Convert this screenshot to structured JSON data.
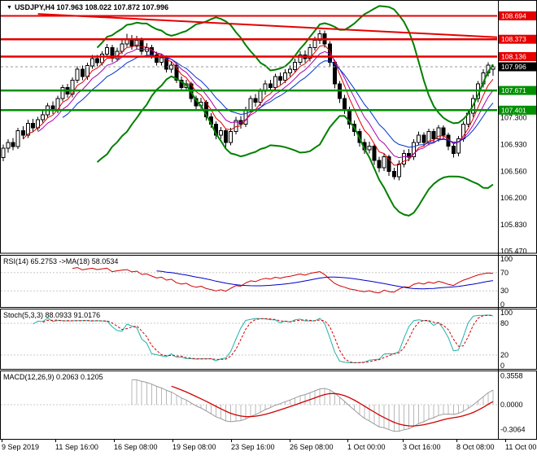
{
  "chart_header": {
    "collapse_icon": "▼",
    "text": "USDJPY,H4 107.963 108.022 107.872 107.996"
  },
  "chart_data": {
    "type": "candlestick",
    "symbol": "USDJPY",
    "timeframe": "H4",
    "last_quote": {
      "open": 107.963,
      "high": 108.022,
      "low": 107.872,
      "close": 107.996
    },
    "x_labels": [
      "9 Sep 2019",
      "11 Sep 16:00",
      "16 Sep 08:00",
      "19 Sep 08:00",
      "23 Sep 16:00",
      "26 Sep 08:00",
      "1 Oct 00:00",
      "3 Oct 16:00",
      "8 Oct 08:00",
      "11 Oct 00:00"
    ],
    "main_panel": {
      "ylim": [
        105.44,
        108.9
      ],
      "y_ticks": [
        {
          "value": 107.3,
          "label": "107.300"
        },
        {
          "value": 106.93,
          "label": "106.930"
        },
        {
          "value": 106.56,
          "label": "106.560"
        },
        {
          "value": 106.2,
          "label": "106.200"
        },
        {
          "value": 105.83,
          "label": "105.830"
        },
        {
          "value": 105.47,
          "label": "105.470"
        }
      ],
      "hlines": [
        {
          "price": 108.694,
          "label": "108.694",
          "color": "#e60000",
          "width": 2
        },
        {
          "price": 108.373,
          "label": "108.373",
          "color": "#e60000",
          "width": 2.5
        },
        {
          "price": 108.136,
          "label": "108.136",
          "color": "#e60000",
          "width": 2.5
        },
        {
          "price": 107.671,
          "label": "107.671",
          "color": "#009000",
          "width": 2.5
        },
        {
          "price": 107.401,
          "label": "107.401",
          "color": "#009000",
          "width": 2.5
        }
      ],
      "trendline": {
        "from_bar": 7,
        "from_price": 108.72,
        "to_bar": 100,
        "to_price": 108.4,
        "color": "#e60000",
        "width": 2
      },
      "current_price": {
        "value": 107.996,
        "label": "107.996",
        "badge_color": "#000000"
      },
      "overlays": {
        "bollinger": {
          "period": 20,
          "deviation": 2,
          "color": "#008000",
          "width": 2
        },
        "ma_fast": {
          "period": 5,
          "color": "#e00000"
        },
        "ma_mid": {
          "period": 8,
          "color": "#aa00aa"
        },
        "ma_slow": {
          "period": 13,
          "color": "#0033cc"
        }
      },
      "candles": [
        [
          106.75,
          106.93,
          106.7,
          106.88
        ],
        [
          106.88,
          107.0,
          106.82,
          106.96
        ],
        [
          106.96,
          107.02,
          106.85,
          106.9
        ],
        [
          106.9,
          107.16,
          106.87,
          107.12
        ],
        [
          107.12,
          107.18,
          107.0,
          107.06
        ],
        [
          107.06,
          107.27,
          107.02,
          107.22
        ],
        [
          107.22,
          107.28,
          107.1,
          107.16
        ],
        [
          107.16,
          107.31,
          107.12,
          107.27
        ],
        [
          107.27,
          107.39,
          107.23,
          107.34
        ],
        [
          107.34,
          107.5,
          107.3,
          107.46
        ],
        [
          107.46,
          107.52,
          107.35,
          107.4
        ],
        [
          107.4,
          107.6,
          107.36,
          107.56
        ],
        [
          107.56,
          107.75,
          107.52,
          107.71
        ],
        [
          107.71,
          107.76,
          107.57,
          107.62
        ],
        [
          107.62,
          107.85,
          107.58,
          107.81
        ],
        [
          107.81,
          108.0,
          107.77,
          107.96
        ],
        [
          107.96,
          108.01,
          107.81,
          107.86
        ],
        [
          107.86,
          108.05,
          107.82,
          108.01
        ],
        [
          108.01,
          108.16,
          107.97,
          108.11
        ],
        [
          108.11,
          108.16,
          108.0,
          108.05
        ],
        [
          108.05,
          108.21,
          108.01,
          108.17
        ],
        [
          108.17,
          108.31,
          108.13,
          108.26
        ],
        [
          108.26,
          108.3,
          108.06,
          108.11
        ],
        [
          108.11,
          108.26,
          108.07,
          108.21
        ],
        [
          108.21,
          108.36,
          108.17,
          108.31
        ],
        [
          108.31,
          108.45,
          108.27,
          108.38
        ],
        [
          108.38,
          108.43,
          108.23,
          108.28
        ],
        [
          108.28,
          108.42,
          108.24,
          108.36
        ],
        [
          108.36,
          108.4,
          108.16,
          108.21
        ],
        [
          108.21,
          108.32,
          108.16,
          108.26
        ],
        [
          108.26,
          108.3,
          108.11,
          108.16
        ],
        [
          108.16,
          108.2,
          108.01,
          108.06
        ],
        [
          108.06,
          108.17,
          108.01,
          108.12
        ],
        [
          108.12,
          108.15,
          107.92,
          107.96
        ],
        [
          107.96,
          108.07,
          107.91,
          108.02
        ],
        [
          108.02,
          108.05,
          107.77,
          107.81
        ],
        [
          107.81,
          107.86,
          107.66,
          107.71
        ],
        [
          107.71,
          107.82,
          107.67,
          107.76
        ],
        [
          107.76,
          107.79,
          107.51,
          107.56
        ],
        [
          107.56,
          107.6,
          107.41,
          107.46
        ],
        [
          107.46,
          107.57,
          107.42,
          107.51
        ],
        [
          107.51,
          107.54,
          107.26,
          107.31
        ],
        [
          107.31,
          107.36,
          107.16,
          107.21
        ],
        [
          107.21,
          107.25,
          107.0,
          107.06
        ],
        [
          107.06,
          107.17,
          107.01,
          107.12
        ],
        [
          107.12,
          107.15,
          106.88,
          106.96
        ],
        [
          106.96,
          107.16,
          106.92,
          107.11
        ],
        [
          107.11,
          107.31,
          107.07,
          107.26
        ],
        [
          107.26,
          107.32,
          107.15,
          107.21
        ],
        [
          107.21,
          107.45,
          107.17,
          107.41
        ],
        [
          107.41,
          107.6,
          107.37,
          107.56
        ],
        [
          107.56,
          107.62,
          107.45,
          107.51
        ],
        [
          107.51,
          107.7,
          107.46,
          107.66
        ],
        [
          107.66,
          107.81,
          107.61,
          107.76
        ],
        [
          107.76,
          107.82,
          107.66,
          107.71
        ],
        [
          107.71,
          107.9,
          107.67,
          107.86
        ],
        [
          107.86,
          107.92,
          107.75,
          107.81
        ],
        [
          107.81,
          107.96,
          107.77,
          107.91
        ],
        [
          107.91,
          108.01,
          107.86,
          107.96
        ],
        [
          107.96,
          108.11,
          107.92,
          108.06
        ],
        [
          108.06,
          108.21,
          108.02,
          108.16
        ],
        [
          108.16,
          108.22,
          108.05,
          108.11
        ],
        [
          108.11,
          108.31,
          108.07,
          108.26
        ],
        [
          108.26,
          108.41,
          108.22,
          108.36
        ],
        [
          108.36,
          108.5,
          108.31,
          108.45
        ],
        [
          108.45,
          108.49,
          108.26,
          108.31
        ],
        [
          108.31,
          108.35,
          108.0,
          108.06
        ],
        [
          108.06,
          108.09,
          107.7,
          107.76
        ],
        [
          107.76,
          107.8,
          107.5,
          107.56
        ],
        [
          107.56,
          107.61,
          107.35,
          107.41
        ],
        [
          107.41,
          107.45,
          107.15,
          107.21
        ],
        [
          107.21,
          107.26,
          107.05,
          107.11
        ],
        [
          107.11,
          107.15,
          106.9,
          106.96
        ],
        [
          106.96,
          107.01,
          106.8,
          106.86
        ],
        [
          106.86,
          106.97,
          106.81,
          106.91
        ],
        [
          106.91,
          106.94,
          106.65,
          106.71
        ],
        [
          106.71,
          106.76,
          106.55,
          106.61
        ],
        [
          106.61,
          106.81,
          106.57,
          106.76
        ],
        [
          106.76,
          106.79,
          106.5,
          106.56
        ],
        [
          106.56,
          106.61,
          106.45,
          106.49
        ],
        [
          106.49,
          106.71,
          106.44,
          106.66
        ],
        [
          106.66,
          106.86,
          106.62,
          106.81
        ],
        [
          106.81,
          106.87,
          106.7,
          106.76
        ],
        [
          106.76,
          107.0,
          106.72,
          106.96
        ],
        [
          106.96,
          107.11,
          106.92,
          107.06
        ],
        [
          107.06,
          107.1,
          106.9,
          106.96
        ],
        [
          106.96,
          107.15,
          106.92,
          107.11
        ],
        [
          107.11,
          107.15,
          106.95,
          107.01
        ],
        [
          107.01,
          107.2,
          106.97,
          107.16
        ],
        [
          107.16,
          107.19,
          107.0,
          107.06
        ],
        [
          107.06,
          107.09,
          106.85,
          106.91
        ],
        [
          106.91,
          106.95,
          106.75,
          106.81
        ],
        [
          106.81,
          107.05,
          106.77,
          107.01
        ],
        [
          107.01,
          107.25,
          106.97,
          107.21
        ],
        [
          107.21,
          107.4,
          107.17,
          107.36
        ],
        [
          107.36,
          107.61,
          107.31,
          107.56
        ],
        [
          107.56,
          107.8,
          107.51,
          107.76
        ],
        [
          107.76,
          107.96,
          107.71,
          107.91
        ],
        [
          107.91,
          108.06,
          107.86,
          108.02
        ],
        [
          107.963,
          108.022,
          107.872,
          107.996
        ]
      ]
    },
    "rsi_panel": {
      "label": "RSI(14) 65.2753  ->MA(18) 58.0534",
      "period": 14,
      "ma_period": 18,
      "value": 65.2753,
      "ma_value": 58.0534,
      "line_color": "#d00000",
      "ma_color": "#0000c8",
      "levels": [
        {
          "value": 100,
          "label": "100",
          "dashed": false
        },
        {
          "value": 70,
          "label": "70",
          "dashed": true
        },
        {
          "value": 30,
          "label": "30",
          "dashed": true
        },
        {
          "value": 0,
          "label": "0",
          "dashed": false
        }
      ]
    },
    "stoch_panel": {
      "label": "Stoch(5,3,3) 88.0933 91.0176",
      "k_period": 5,
      "d_period": 3,
      "slowing": 3,
      "value": 88.0933,
      "signal_value": 91.0176,
      "k_color": "#20b2aa",
      "d_color": "#d00000",
      "levels": [
        {
          "value": 100,
          "label": "100",
          "dashed": false
        },
        {
          "value": 80,
          "label": "80",
          "dashed": true
        },
        {
          "value": 20,
          "label": "20",
          "dashed": true
        },
        {
          "value": 0,
          "label": "0",
          "dashed": false
        }
      ]
    },
    "macd_panel": {
      "label": "MACD(12,26,9) 0.2063 0.1205",
      "fast": 12,
      "slow": 26,
      "signal": 9,
      "value": 0.2063,
      "signal_value": 0.1205,
      "hist_color": "#b8b8b8",
      "signal_color": "#d00000",
      "ylim": [
        -0.42,
        0.42
      ],
      "levels": [
        {
          "value": 0.3558,
          "label": "0.3558",
          "dashed": false
        },
        {
          "value": 0.0,
          "label": "0.0000",
          "dashed": true
        },
        {
          "value": -0.3064,
          "label": "-0.3064",
          "dashed": false
        }
      ]
    }
  }
}
